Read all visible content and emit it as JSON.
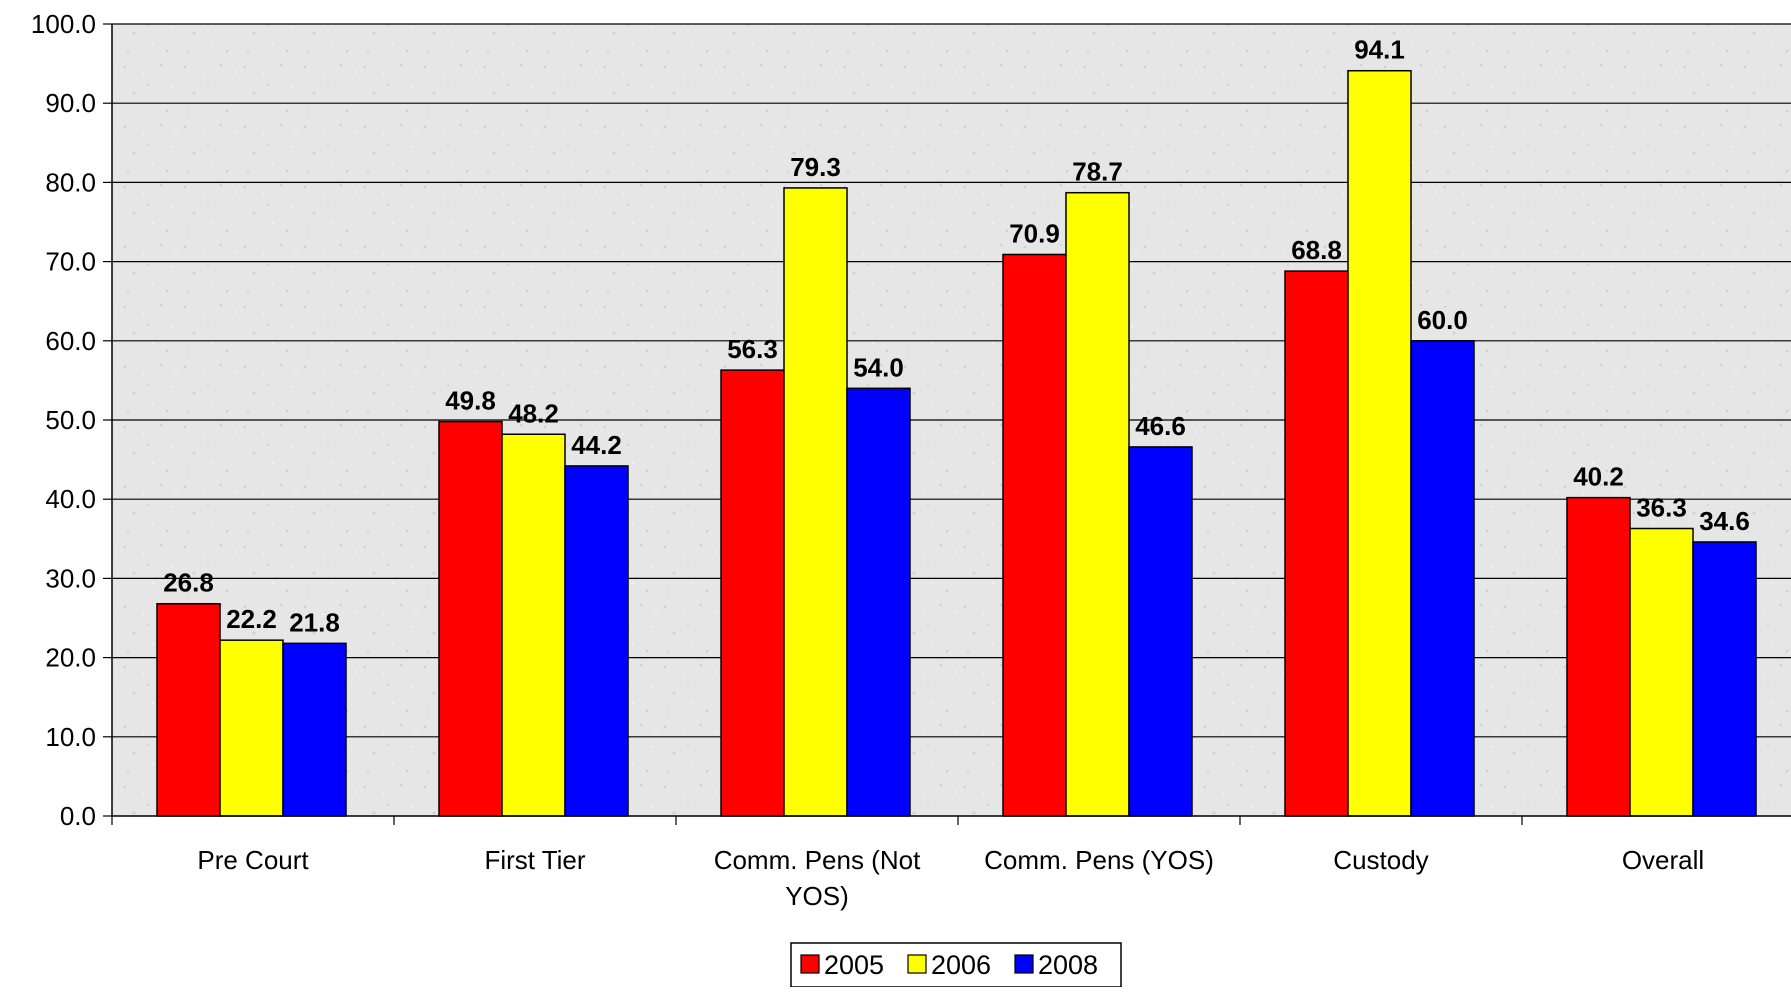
{
  "chart_data": {
    "type": "bar",
    "title": "",
    "xlabel": "",
    "ylabel": "",
    "ylim": [
      0,
      100
    ],
    "y_ticks": [
      "0.0",
      "10.0",
      "20.0",
      "30.0",
      "40.0",
      "50.0",
      "60.0",
      "70.0",
      "80.0",
      "90.0",
      "100.0"
    ],
    "grid": "horizontal",
    "legend_position": "bottom-center",
    "categories": [
      [
        "Pre Court"
      ],
      [
        "First Tier"
      ],
      [
        "Comm. Pens (Not",
        "YOS)"
      ],
      [
        "Comm. Pens (YOS)"
      ],
      [
        "Custody"
      ],
      [
        "Overall"
      ]
    ],
    "series": [
      {
        "name": "2005",
        "color": "#ff0000",
        "values": [
          26.8,
          49.8,
          56.3,
          70.9,
          68.8,
          40.2
        ],
        "labels": [
          "26.8",
          "49.8",
          "56.3",
          "70.9",
          "68.8",
          "40.2"
        ]
      },
      {
        "name": "2006",
        "color": "#ffff00",
        "values": [
          22.2,
          48.2,
          79.3,
          78.7,
          94.1,
          36.3
        ],
        "labels": [
          "22.2",
          "48.2",
          "79.3",
          "78.7",
          "94.1",
          "36.3"
        ]
      },
      {
        "name": "2008",
        "color": "#0000ff",
        "values": [
          21.8,
          44.2,
          54.0,
          46.6,
          60.0,
          34.6
        ],
        "labels": [
          "21.8",
          "44.2",
          "54.0",
          "46.6",
          "60.0",
          "34.6"
        ]
      }
    ]
  }
}
